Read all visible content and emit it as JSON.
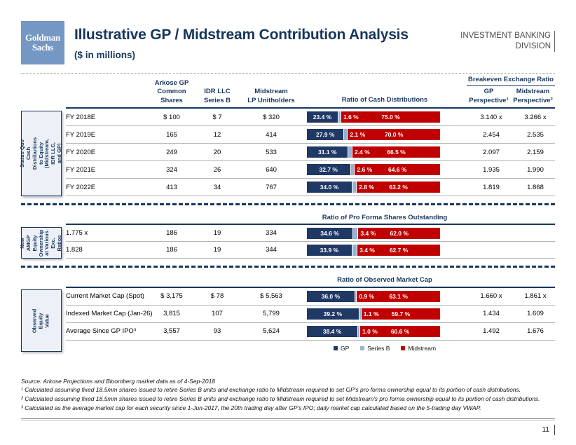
{
  "header": {
    "logo_text": "Goldman\nSachs",
    "title": "Illustrative GP / Midstream Contribution Analysis",
    "subtitle": "($ in millions)",
    "division": "INVESTMENT BANKING\nDIVISION"
  },
  "table": {
    "col_headers": {
      "col1": "Arkose GP\nCommon\nShares",
      "col2": "IDR LLC\nSeries B",
      "col3": "Midstream\nLP Unitholders",
      "bar_header": "Ratio of Cash Distributions",
      "breakeven": "Breakeven Exchange Ratio",
      "ratio_gp": "GP\nPerspective¹",
      "ratio_mid": "Midstream\nPerspective²"
    },
    "sections": [
      {
        "side_label": "Status Quo Cash Distributions\nto Equity (Midstream, IDR LLC,\nand GP)",
        "rows": [
          {
            "label": "FY 2018E",
            "v1": "$ 100",
            "v2": "$ 7",
            "v3": "$ 320",
            "gp": 23.4,
            "sb": 1.6,
            "mid": 75.0,
            "r1": "3.140 x",
            "r2": "3.266 x"
          },
          {
            "label": "FY 2019E",
            "v1": "165",
            "v2": "12",
            "v3": "414",
            "gp": 27.9,
            "sb": 2.1,
            "mid": 70.0,
            "r1": "2.454",
            "r2": "2.535"
          },
          {
            "label": "FY 2020E",
            "v1": "249",
            "v2": "20",
            "v3": "533",
            "gp": 31.1,
            "sb": 2.4,
            "mid": 66.5,
            "r1": "2.097",
            "r2": "2.159"
          },
          {
            "label": "FY 2021E",
            "v1": "324",
            "v2": "26",
            "v3": "640",
            "gp": 32.7,
            "sb": 2.6,
            "mid": 64.6,
            "r1": "1.935",
            "r2": "1.990"
          },
          {
            "label": "FY 2022E",
            "v1": "413",
            "v2": "34",
            "v3": "767",
            "gp": 34.0,
            "sb": 2.8,
            "mid": 63.2,
            "r1": "1.819",
            "r2": "1.868"
          }
        ]
      },
      {
        "side_label": "New AMGP\nEquity\nOwnership\nat Various\nExc. Ratios",
        "bar_header": "Ratio of Pro Forma Shares Outstanding",
        "rows": [
          {
            "label": "1.775 x",
            "v1": "186",
            "v2": "19",
            "v3": "334",
            "gp": 34.6,
            "sb": 3.4,
            "mid": 62.0,
            "r1": "",
            "r2": ""
          },
          {
            "label": "1.828",
            "v1": "186",
            "v2": "19",
            "v3": "344",
            "gp": 33.9,
            "sb": 3.4,
            "mid": 62.7,
            "r1": "",
            "r2": ""
          }
        ]
      },
      {
        "side_label": "Observed Equity\nValue",
        "bar_header": "Ratio of Observed Market Cap",
        "rows": [
          {
            "label": "Current Market Cap (Spot)",
            "v1": "$ 3,175",
            "v2": "$ 78",
            "v3": "$ 5,563",
            "gp": 36.0,
            "sb": 0.9,
            "mid": 63.1,
            "r1": "1.660 x",
            "r2": "1.861 x"
          },
          {
            "label": "Indexed Market Cap (Jan-26)",
            "v1": "3,815",
            "v2": "107",
            "v3": "5,799",
            "gp": 39.2,
            "sb": 1.1,
            "mid": 59.7,
            "r1": "1.434",
            "r2": "1.609"
          },
          {
            "label": "Average Since GP IPO³",
            "v1": "3,557",
            "v2": "93",
            "v3": "5,624",
            "gp": 38.4,
            "sb": 1.0,
            "mid": 60.6,
            "r1": "1.492",
            "r2": "1.676"
          }
        ]
      }
    ]
  },
  "legend": [
    {
      "name": "GP",
      "color": "#1F3864"
    },
    {
      "name": "Series B",
      "color": "#95B3D7"
    },
    {
      "name": "Midstream",
      "color": "#C00000"
    }
  ],
  "footer": {
    "source": "Source: Arkose Projections and Bloomberg market data as of 4-Sep-2018",
    "footnotes": [
      "¹ Calculated assuming fixed 18.5mm shares issued to retire Series B units and exchange ratio to Midstream required to set GP's pro forma ownership equal to its portion of cash distributions.",
      "² Calculated assuming fixed 18.5mm shares issued to retire Series B units and exchange ratio to Midstream required to set Midstream's pro forma ownership equal to its portion of cash distributions.",
      "³ Calculated as the average market cap for each security since 1-Jun-2017, the 20th trading day after GP's IPO; daily market cap calculated based on the 5-trading day VWAP."
    ],
    "page_number": "11"
  },
  "colors": {
    "navy": "#17365D",
    "gp_segment": "#1F3864",
    "series_b_segment": "#95B3D7",
    "midstream_segment": "#C00000",
    "logo_blue": "#7497C4"
  },
  "chart_data": [
    {
      "type": "bar",
      "subtype": "horizontal-stacked-100pct",
      "title": "Ratio of Cash Distributions",
      "categories": [
        "FY 2018E",
        "FY 2019E",
        "FY 2020E",
        "FY 2021E",
        "FY 2022E"
      ],
      "series": [
        {
          "name": "GP",
          "values": [
            23.4,
            27.9,
            31.1,
            32.7,
            34.0
          ]
        },
        {
          "name": "Series B",
          "values": [
            1.6,
            2.1,
            2.4,
            2.6,
            2.8
          ]
        },
        {
          "name": "Midstream",
          "values": [
            75.0,
            70.0,
            66.5,
            64.6,
            63.2
          ]
        }
      ],
      "unit": "%",
      "xlim": [
        0,
        100
      ],
      "legend_position": "bottom"
    },
    {
      "type": "bar",
      "subtype": "horizontal-stacked-100pct",
      "title": "Ratio of Pro Forma Shares Outstanding",
      "categories": [
        "1.775 x",
        "1.828"
      ],
      "series": [
        {
          "name": "GP",
          "values": [
            34.6,
            33.9
          ]
        },
        {
          "name": "Series B",
          "values": [
            3.4,
            3.4
          ]
        },
        {
          "name": "Midstream",
          "values": [
            62.0,
            62.7
          ]
        }
      ],
      "unit": "%",
      "xlim": [
        0,
        100
      ]
    },
    {
      "type": "bar",
      "subtype": "horizontal-stacked-100pct",
      "title": "Ratio of Observed Market Cap",
      "categories": [
        "Current Market Cap (Spot)",
        "Indexed Market Cap (Jan-26)",
        "Average Since GP IPO³"
      ],
      "series": [
        {
          "name": "GP",
          "values": [
            36.0,
            39.2,
            38.4
          ]
        },
        {
          "name": "Series B",
          "values": [
            0.9,
            1.1,
            1.0
          ]
        },
        {
          "name": "Midstream",
          "values": [
            63.1,
            59.7,
            60.6
          ]
        }
      ],
      "unit": "%",
      "xlim": [
        0,
        100
      ]
    }
  ]
}
